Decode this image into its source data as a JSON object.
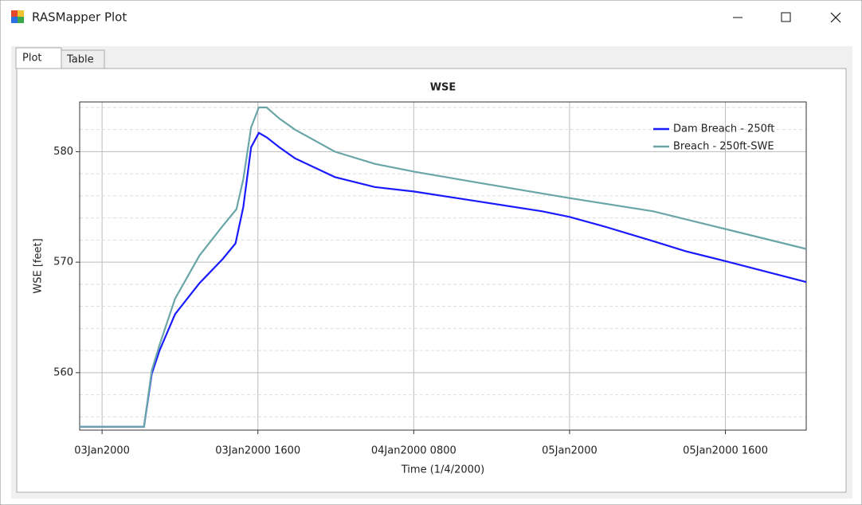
{
  "window": {
    "title": "RASMapper Plot"
  },
  "tabs": [
    "Plot",
    "Table"
  ],
  "chart_data": {
    "type": "line",
    "title": "WSE",
    "x_label": "Time (1/4/2000)",
    "y_label": "WSE [feet]",
    "xlim": [
      -2.3,
      72.3
    ],
    "xticks": [
      {
        "value": 0,
        "label": "03Jan2000"
      },
      {
        "value": 16,
        "label": "03Jan2000 1600"
      },
      {
        "value": 32,
        "label": "04Jan2000 0800"
      },
      {
        "value": 48,
        "label": "05Jan2000"
      },
      {
        "value": 64,
        "label": "05Jan2000 1600"
      }
    ],
    "ylim": [
      554.8,
      584.5
    ],
    "yticks": [
      560,
      570,
      580
    ],
    "minor_yticks": [
      556,
      558,
      562,
      564,
      566,
      568,
      572,
      574,
      576,
      578,
      582,
      584
    ],
    "grid": true,
    "legend": "upper right",
    "series": [
      {
        "name": "Dam Breach - 250ft",
        "color": "#1a1aff",
        "x": [
          -2.3,
          4.3,
          5.1,
          5.9,
          7.5,
          10,
          12.4,
          13.7,
          14.5,
          15.3,
          16.1,
          16.9,
          18.2,
          19.8,
          23.9,
          28,
          32,
          38.6,
          45.2,
          48,
          51.7,
          56.6,
          59.9,
          64,
          72.3
        ],
        "values": [
          555.1,
          555.1,
          559.9,
          562.0,
          565.3,
          568.1,
          570.3,
          571.7,
          575.0,
          580.4,
          581.7,
          581.3,
          580.4,
          579.4,
          577.7,
          576.8,
          576.4,
          575.5,
          574.6,
          574.1,
          573.2,
          571.9,
          571.0,
          570.1,
          568.2
        ]
      },
      {
        "name": "Breach - 250ft-SWE",
        "color": "#6aa6a8",
        "x": [
          -2.3,
          4.3,
          5.1,
          5.9,
          7.5,
          10,
          12.4,
          13.8,
          14.5,
          15.3,
          16.1,
          16.9,
          18.2,
          19.8,
          23.9,
          28,
          32,
          38.6,
          48,
          56.6,
          64,
          72.3
        ],
        "values": [
          555.1,
          555.1,
          560.2,
          562.5,
          566.7,
          570.6,
          573.3,
          574.8,
          577.5,
          582.2,
          584.0,
          584.0,
          583.0,
          582.0,
          580.0,
          578.9,
          578.2,
          577.2,
          575.8,
          574.6,
          573.0,
          571.2
        ]
      }
    ]
  }
}
